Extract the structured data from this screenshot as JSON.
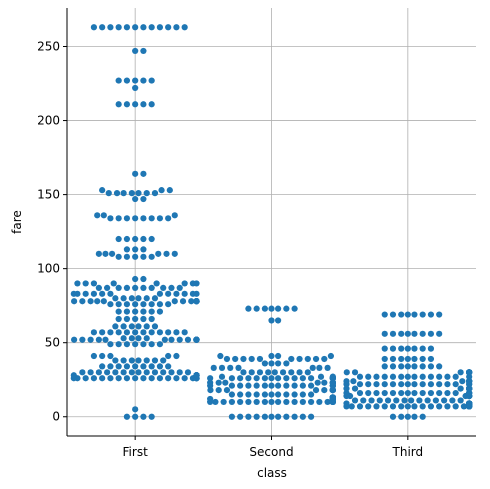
{
  "chart_data": {
    "type": "scatter",
    "subtype": "swarm",
    "title": "",
    "xlabel": "class",
    "ylabel": "fare",
    "categories": [
      "First",
      "Second",
      "Third"
    ],
    "ylim": [
      -13,
      276
    ],
    "yticks": [
      0,
      50,
      100,
      150,
      200,
      250
    ],
    "grid": true,
    "point_color": "#1f77b4",
    "series": [
      {
        "category": "First",
        "values": [
          0,
          0,
          0,
          0,
          5,
          26,
          26,
          26,
          26,
          26,
          26,
          26,
          26,
          26,
          26,
          26,
          26,
          26,
          26,
          26,
          26,
          26,
          26,
          26,
          26,
          26,
          26,
          26,
          28,
          28,
          28,
          28,
          28,
          28,
          28,
          28,
          28,
          28,
          30,
          30,
          30,
          30,
          30,
          30,
          30,
          30,
          30,
          30,
          30,
          30,
          30,
          30,
          34,
          34,
          34,
          34,
          34,
          34,
          34,
          34,
          34,
          38,
          38,
          38,
          38,
          38,
          38,
          38,
          41,
          41,
          41,
          41,
          41,
          49,
          49,
          49,
          49,
          49,
          49,
          49,
          52,
          52,
          52,
          52,
          52,
          52,
          52,
          52,
          52,
          52,
          52,
          52,
          52,
          52,
          52,
          52,
          52,
          52,
          52,
          52,
          53,
          53,
          53,
          53,
          57,
          57,
          57,
          57,
          57,
          57,
          57,
          57,
          57,
          57,
          57,
          57,
          61,
          61,
          61,
          61,
          61,
          61,
          66,
          66,
          66,
          66,
          66,
          71,
          71,
          71,
          71,
          71,
          71,
          76,
          76,
          76,
          76,
          76,
          76,
          76,
          76,
          78,
          78,
          78,
          78,
          78,
          78,
          78,
          78,
          78,
          78,
          78,
          78,
          78,
          78,
          78,
          78,
          78,
          78,
          78,
          78,
          80,
          80,
          80,
          80,
          80,
          80,
          83,
          83,
          83,
          83,
          83,
          83,
          83,
          83,
          83,
          83,
          83,
          83,
          87,
          87,
          87,
          87,
          87,
          87,
          87,
          87,
          87,
          87,
          90,
          90,
          90,
          90,
          90,
          90,
          90,
          90,
          93,
          93,
          108,
          108,
          108,
          108,
          108,
          110,
          110,
          110,
          110,
          110,
          110,
          113,
          113,
          113,
          120,
          120,
          120,
          120,
          120,
          134,
          134,
          134,
          134,
          134,
          134,
          134,
          134,
          136,
          136,
          136,
          147,
          147,
          151,
          151,
          151,
          151,
          151,
          151,
          151,
          153,
          153,
          153,
          164,
          164,
          211,
          211,
          211,
          211,
          211,
          222,
          227,
          227,
          227,
          227,
          227,
          247,
          247,
          263,
          263,
          263,
          263,
          263,
          263,
          263,
          263,
          263,
          263,
          263,
          263
        ]
      },
      {
        "category": "Second",
        "values": [
          0,
          0,
          0,
          0,
          0,
          0,
          0,
          0,
          0,
          0,
          0,
          10,
          10,
          10,
          10,
          10,
          10,
          10,
          10,
          10,
          10,
          10,
          10,
          10,
          10,
          10,
          10,
          10,
          10,
          10,
          10,
          10,
          10,
          10,
          10,
          10,
          10,
          12,
          12,
          12,
          12,
          12,
          12,
          12,
          12,
          12,
          12,
          13,
          13,
          13,
          13,
          13,
          13,
          13,
          13,
          13,
          13,
          13,
          13,
          13,
          13,
          13,
          13,
          13,
          15,
          15,
          15,
          15,
          15,
          15,
          15,
          15,
          15,
          15,
          15,
          18,
          18,
          18,
          18,
          18,
          18,
          18,
          18,
          18,
          18,
          18,
          21,
          21,
          21,
          21,
          21,
          21,
          21,
          21,
          21,
          21,
          21,
          21,
          21,
          21,
          21,
          21,
          23,
          23,
          23,
          23,
          23,
          23,
          23,
          23,
          23,
          23,
          23,
          23,
          23,
          26,
          26,
          26,
          26,
          26,
          26,
          26,
          26,
          26,
          26,
          26,
          26,
          26,
          26,
          26,
          26,
          26,
          26,
          26,
          27,
          27,
          27,
          27,
          30,
          30,
          30,
          30,
          30,
          30,
          30,
          30,
          30,
          33,
          33,
          33,
          33,
          33,
          33,
          33,
          36,
          36,
          36,
          36,
          39,
          39,
          39,
          39,
          39,
          39,
          39,
          39,
          39,
          39,
          41,
          41,
          41,
          41,
          65,
          65,
          73,
          73,
          73,
          73,
          73,
          73,
          73
        ]
      },
      {
        "category": "Third",
        "values": [
          0,
          0,
          0,
          0,
          0,
          7,
          7,
          7,
          7,
          7,
          7,
          7,
          7,
          7,
          7,
          7,
          7,
          7,
          7,
          7,
          7,
          7,
          7,
          7,
          7,
          7,
          7,
          7,
          7,
          7,
          7,
          8,
          8,
          8,
          8,
          8,
          8,
          8,
          8,
          8,
          8,
          8,
          8,
          8,
          8,
          8,
          8,
          8,
          8,
          8,
          8,
          9,
          9,
          9,
          9,
          9,
          9,
          9,
          9,
          9,
          9,
          9,
          9,
          9,
          9,
          9,
          9,
          11,
          11,
          11,
          11,
          11,
          11,
          11,
          11,
          11,
          11,
          11,
          11,
          11,
          11,
          14,
          14,
          14,
          14,
          14,
          14,
          14,
          14,
          14,
          14,
          14,
          14,
          14,
          14,
          14,
          14,
          14,
          14,
          14,
          14,
          16,
          16,
          16,
          16,
          16,
          16,
          16,
          16,
          16,
          16,
          16,
          16,
          16,
          16,
          16,
          16,
          16,
          16,
          19,
          19,
          19,
          19,
          19,
          19,
          19,
          19,
          19,
          19,
          19,
          19,
          19,
          19,
          22,
          22,
          22,
          22,
          22,
          22,
          22,
          22,
          22,
          22,
          22,
          22,
          22,
          22,
          22,
          22,
          24,
          24,
          24,
          24,
          24,
          24,
          24,
          24,
          24,
          24,
          27,
          27,
          27,
          27,
          27,
          27,
          27,
          27,
          27,
          27,
          27,
          27,
          27,
          27,
          30,
          30,
          30,
          30,
          30,
          30,
          30,
          30,
          30,
          30,
          30,
          30,
          30,
          30,
          34,
          34,
          34,
          34,
          34,
          34,
          34,
          34,
          39,
          39,
          39,
          39,
          39,
          39,
          39,
          46,
          46,
          46,
          46,
          46,
          46,
          46,
          56,
          56,
          56,
          56,
          56,
          56,
          56,
          56,
          69,
          69,
          69,
          69,
          69,
          69,
          69,
          69
        ]
      }
    ]
  }
}
